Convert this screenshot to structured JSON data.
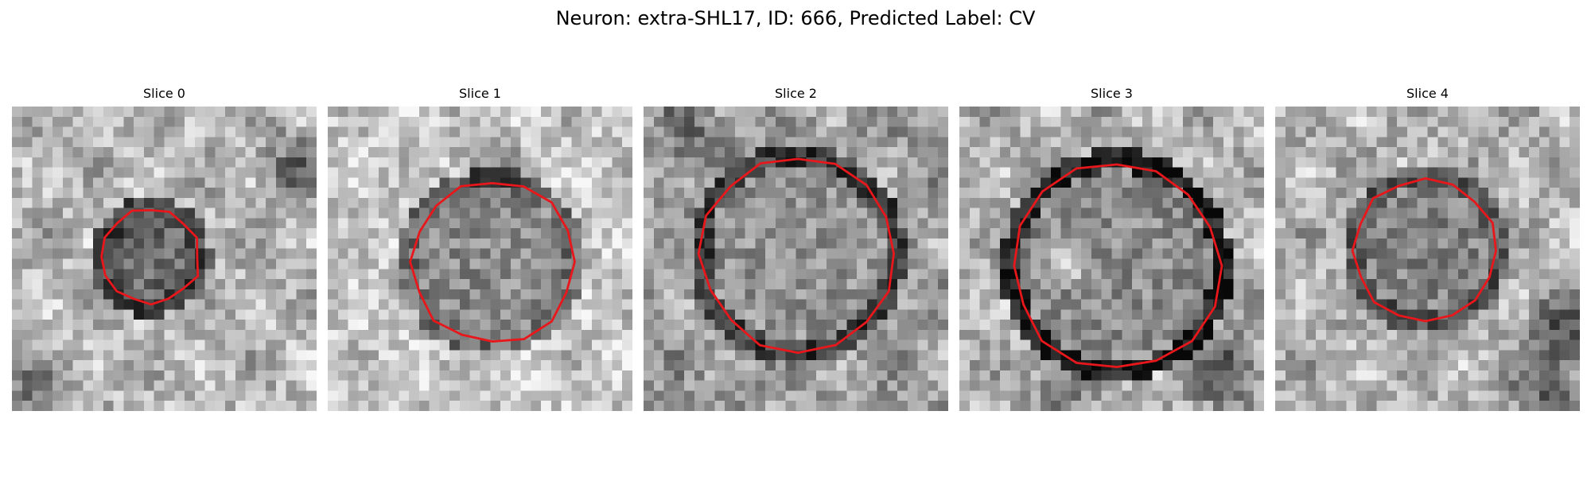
{
  "figure": {
    "title": "Neuron: extra-SHL17, ID: 666, Predicted Label: CV"
  },
  "slices": [
    {
      "title": "Slice 0"
    },
    {
      "title": "Slice 1"
    },
    {
      "title": "Slice 2"
    },
    {
      "title": "Slice 3"
    },
    {
      "title": "Slice 4"
    }
  ],
  "colors": {
    "contour": "#e8171b",
    "background": "#ffffff"
  },
  "colormap": "grayscale"
}
